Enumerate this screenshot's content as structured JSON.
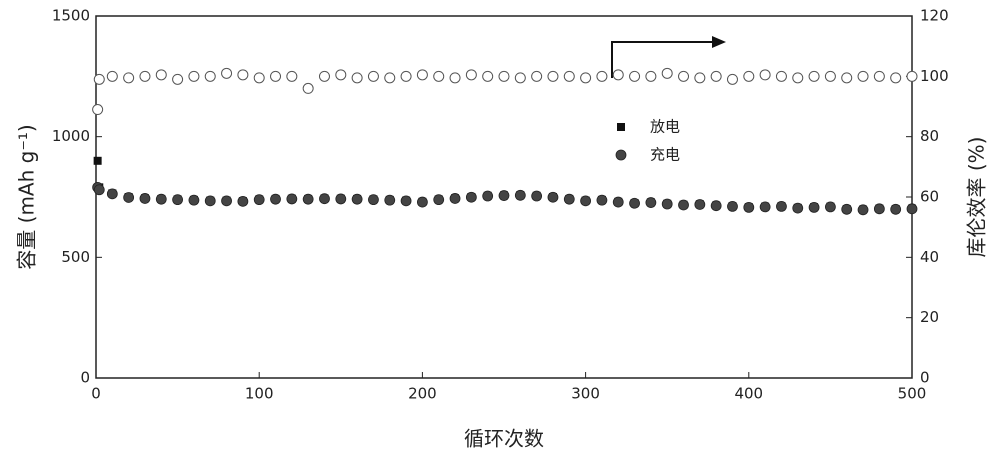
{
  "chart_data": {
    "type": "scatter",
    "xlabel": "循环次数",
    "ylabel": "容量 (mAh g⁻¹)",
    "y2label": "库伦效率 (%)",
    "xlim": [
      0,
      500
    ],
    "xticks": [
      0,
      100,
      200,
      300,
      400,
      500
    ],
    "ylim": [
      0,
      1500
    ],
    "yticks": [
      0,
      500,
      1000,
      1500
    ],
    "y2lim": [
      0,
      120
    ],
    "y2ticks": [
      0,
      20,
      40,
      60,
      80,
      100,
      120
    ],
    "x": [
      1,
      2,
      10,
      20,
      30,
      40,
      50,
      60,
      70,
      80,
      90,
      100,
      110,
      120,
      130,
      140,
      150,
      160,
      170,
      180,
      190,
      200,
      210,
      220,
      230,
      240,
      250,
      260,
      270,
      280,
      290,
      300,
      310,
      320,
      330,
      340,
      350,
      360,
      370,
      380,
      390,
      400,
      410,
      420,
      430,
      440,
      450,
      460,
      470,
      480,
      490,
      500
    ],
    "series": [
      {
        "name": "放电",
        "color": "#111111",
        "marker": "square",
        "values": [
          900,
          790,
          765,
          750,
          745,
          742,
          740,
          738,
          735,
          735,
          733,
          740,
          742,
          743,
          742,
          744,
          743,
          742,
          740,
          738,
          735,
          730,
          740,
          745,
          750,
          755,
          757,
          758,
          755,
          750,
          742,
          735,
          738,
          730,
          725,
          728,
          722,
          718,
          720,
          715,
          712,
          708,
          710,
          712,
          705,
          708,
          710,
          700,
          698,
          702,
          700,
          702
        ]
      },
      {
        "name": "充电",
        "color": "#444444",
        "marker": "circle",
        "values": [
          790,
          780,
          763,
          748,
          744,
          741,
          739,
          737,
          734,
          734,
          732,
          739,
          741,
          742,
          741,
          743,
          742,
          741,
          739,
          737,
          734,
          729,
          739,
          744,
          749,
          754,
          756,
          757,
          754,
          749,
          741,
          734,
          737,
          729,
          724,
          727,
          721,
          717,
          719,
          714,
          711,
          707,
          709,
          711,
          704,
          707,
          709,
          699,
          697,
          701,
          699,
          701
        ]
      },
      {
        "color": "#555555",
        "marker": "open-circle",
        "axis": "y2",
        "values": [
          89,
          99,
          100,
          99.5,
          100,
          100.5,
          99,
          100,
          100,
          101,
          100.5,
          99.5,
          100,
          100,
          96,
          100,
          100.5,
          99.5,
          100,
          99.5,
          100,
          100.5,
          100,
          99.5,
          100.5,
          100,
          100,
          99.5,
          100,
          100,
          100,
          99.5,
          100,
          100.5,
          100,
          100,
          101,
          100,
          99.5,
          100,
          99,
          100,
          100.5,
          100,
          99.5,
          100,
          100,
          99.5,
          100,
          100,
          99.5,
          100
        ]
      }
    ]
  }
}
